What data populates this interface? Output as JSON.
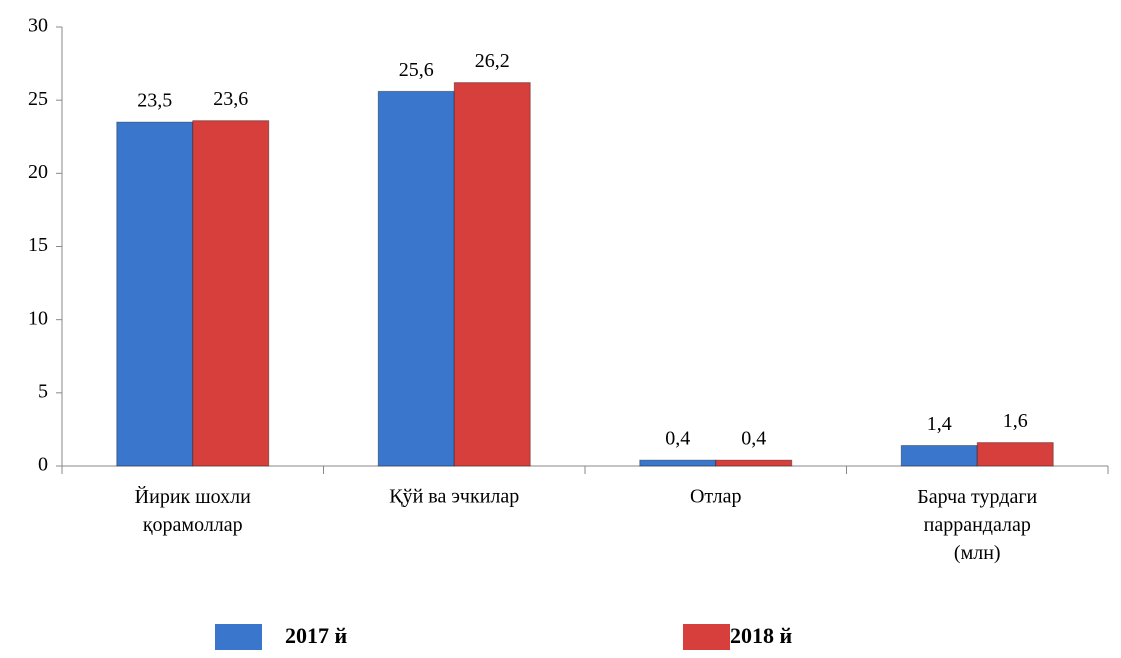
{
  "chart_data": {
    "type": "bar",
    "categories": [
      "Йирик шохли қорамоллар",
      "Қўй ва эчкилар",
      "Отлар",
      "Барча турдаги паррандалар (млн)"
    ],
    "series": [
      {
        "name": "2017 й",
        "color": "#3a76cc",
        "values": [
          23.5,
          25.6,
          0.4,
          1.4
        ],
        "value_labels": [
          "23,5",
          "25,6",
          "0,4",
          "1,4"
        ]
      },
      {
        "name": "2018 й",
        "color": "#d63f3c",
        "values": [
          23.6,
          26.2,
          0.4,
          1.6
        ],
        "value_labels": [
          "23,6",
          "26,2",
          "0,4",
          "1,6"
        ]
      }
    ],
    "ylim": [
      0,
      30
    ],
    "yticks": [
      0,
      5,
      10,
      15,
      20,
      25,
      30
    ],
    "grid": false,
    "legend": "bottom"
  }
}
